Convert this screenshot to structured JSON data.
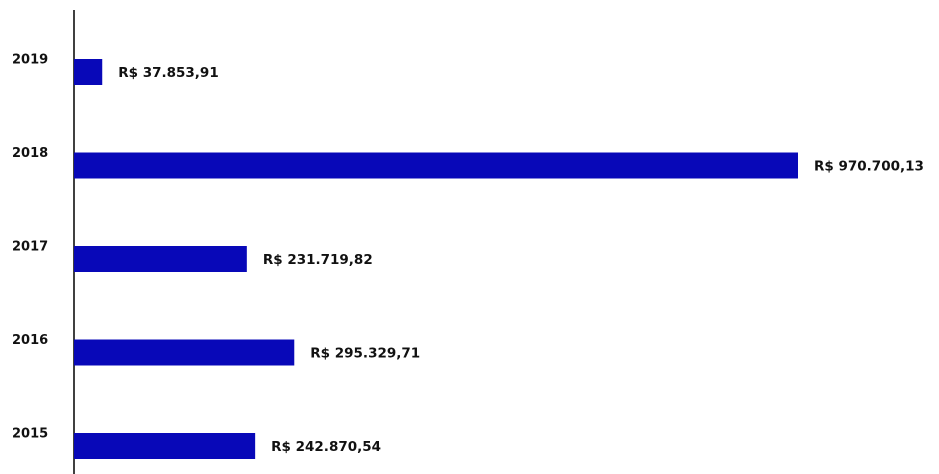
{
  "chart_data": {
    "type": "bar",
    "orientation": "horizontal",
    "categories": [
      "2019",
      "2018",
      "2017",
      "2016",
      "2015"
    ],
    "values": [
      37853.91,
      970700.13,
      231719.82,
      295329.71,
      242870.54
    ],
    "value_labels": [
      "R$ 37.853,91",
      "R$ 970.700,13",
      "R$ 231.719,82",
      "R$ 295.329,71",
      "R$ 242.870,54"
    ],
    "color": "#0808b8"
  }
}
